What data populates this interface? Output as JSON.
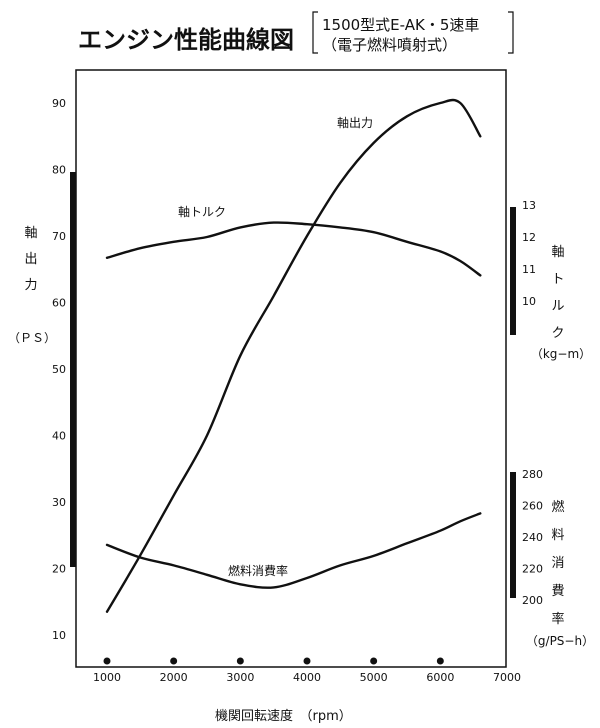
{
  "title": "エンジン性能曲線図",
  "spec_line1": "1500型式E-AK・5速車",
  "spec_line2": "（電子燃料噴射式）",
  "chart_data": {
    "type": "line",
    "title": "エンジン性能曲線図",
    "xlabel": "機関回転速度　（rpm）",
    "x_ticks": [
      1000,
      2000,
      3000,
      4000,
      5000,
      6000,
      7000
    ],
    "xlim": [
      1000,
      7000
    ],
    "grid": false,
    "axes": {
      "power": {
        "label_chars": [
          "軸",
          "出",
          "力"
        ],
        "unit": "（ＰＳ）",
        "ticks": [
          10,
          20,
          30,
          40,
          50,
          60,
          70,
          80,
          90
        ],
        "range": [
          5,
          95
        ]
      },
      "torque": {
        "label_chars": [
          "軸",
          "ト",
          "ル",
          "ク"
        ],
        "unit": "（kg−m）",
        "ticks": [
          10,
          11,
          12,
          13
        ],
        "range": [
          9.6,
          13
        ]
      },
      "fuel": {
        "label_chars": [
          "燃",
          "料",
          "消",
          "費",
          "率"
        ],
        "unit": "（g/PS−h）",
        "ticks": [
          200,
          220,
          240,
          260,
          280
        ],
        "range": [
          200,
          280
        ]
      }
    },
    "series": [
      {
        "name": "軸出力",
        "axis": "power",
        "x": [
          1000,
          1500,
          2000,
          2500,
          3000,
          3500,
          4000,
          4500,
          5000,
          5500,
          6000,
          6300,
          6600
        ],
        "y": [
          13.5,
          22,
          31,
          40,
          52,
          61,
          70,
          78,
          84,
          88,
          90,
          90,
          85
        ]
      },
      {
        "name": "軸トルク",
        "axis": "torque",
        "x": [
          1000,
          1500,
          2000,
          2500,
          3000,
          3500,
          4000,
          4500,
          5000,
          5500,
          6000,
          6300,
          6600
        ],
        "y": [
          11.35,
          11.65,
          11.85,
          12.0,
          12.3,
          12.45,
          12.4,
          12.3,
          12.15,
          11.85,
          11.55,
          11.25,
          10.8
        ]
      },
      {
        "name": "燃料消費率",
        "axis": "fuel",
        "x": [
          1000,
          1500,
          2000,
          2500,
          3000,
          3500,
          4000,
          4500,
          5000,
          5500,
          6000,
          6300,
          6600
        ],
        "y": [
          235,
          227,
          222,
          216,
          210,
          208,
          214,
          222,
          228,
          236,
          244,
          250,
          255
        ]
      }
    ]
  }
}
